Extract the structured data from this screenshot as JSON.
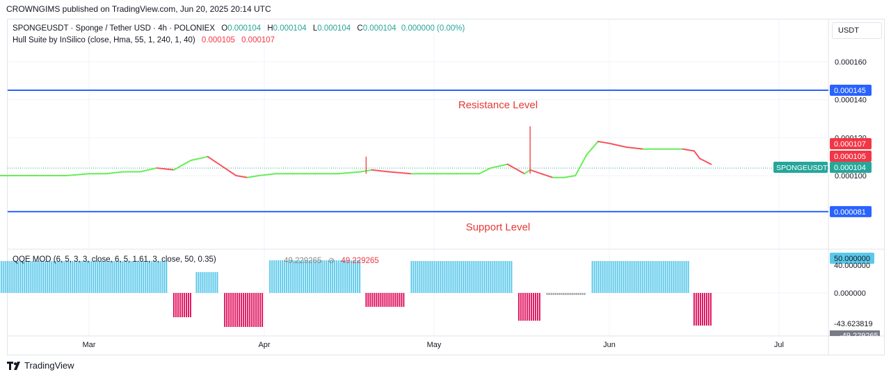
{
  "header": {
    "publisher_line": "CROWNGIMS published on TradingView.com, Jun 20, 2025 20:14 UTC"
  },
  "legend": {
    "symbol": "SPONGEUSDT · Sponge / Tether USD · 4h · POLONIEX",
    "o_label": "O",
    "o_value": "0.000104",
    "h_label": "H",
    "h_value": "0.000104",
    "l_label": "L",
    "l_value": "0.000104",
    "c_label": "C",
    "c_value": "0.000104",
    "change": "0.000000 (0.00%)",
    "indicator": "Hull Suite by InSilico (close, Hma, 55, 1, 240, 1, 40)",
    "ind_val1": "0.000105",
    "ind_val2": "0.000107"
  },
  "qqe_legend": {
    "label": "QQE MOD (6, 5, 3, 3, close, 6, 5, 1.61, 3, close, 50, 0.35)",
    "val1": "49.229265",
    "val2": "49.229265"
  },
  "currency_button": "USDT",
  "footer": {
    "brand": "TradingView"
  },
  "colors": {
    "teal": "#26a69a",
    "red": "#f23645",
    "blue": "#2962ff",
    "green": "#4cfa4c",
    "lime_hull": "#66ee55",
    "hull_red": "#f7525f",
    "cyan_bar": "#5ac8ea",
    "magenta_bar": "#e0145f",
    "gray_bar": "#9e9e9e"
  },
  "chart_data": [
    {
      "type": "line",
      "title": "SPONGEUSDT · Sponge / Tether USD · 4h · POLONIEX",
      "ylim": [
        7.7e-05,
        0.000176
      ],
      "y_ticks": [
        "0.000160",
        "0.000140",
        "0.000120",
        "0.000100"
      ],
      "x_ticks": [
        "Mar",
        "Apr",
        "May",
        "Jun",
        "Jul"
      ],
      "x_tick_dates": [
        "2025-03-01",
        "2025-04-01",
        "2025-05-01",
        "2025-06-01",
        "2025-07-01"
      ],
      "horizontal_levels": [
        {
          "label": "0.000145",
          "value": 0.000145,
          "annotation": "Resistance Level"
        },
        {
          "label": "0.000081",
          "value": 8.1e-05,
          "annotation": "Support Level"
        }
      ],
      "price_badges": [
        {
          "label": "0.000107",
          "value": 0.000107
        },
        {
          "label": "0.000105",
          "value": 0.000105
        },
        {
          "label": "0.000104",
          "value": 0.000104,
          "name": "SPONGEUSDT"
        }
      ],
      "series": [
        {
          "name": "Hull Suite",
          "x": [
            "2025-02-01",
            "2025-02-10",
            "2025-02-15",
            "2025-02-20",
            "2025-02-25",
            "2025-03-01",
            "2025-03-04",
            "2025-03-07",
            "2025-03-10",
            "2025-03-13",
            "2025-03-16",
            "2025-03-19",
            "2025-03-22",
            "2025-03-25",
            "2025-03-27",
            "2025-03-29",
            "2025-03-31",
            "2025-04-03",
            "2025-04-06",
            "2025-04-10",
            "2025-04-14",
            "2025-04-18",
            "2025-04-20",
            "2025-04-23",
            "2025-04-27",
            "2025-05-01",
            "2025-05-05",
            "2025-05-09",
            "2025-05-11",
            "2025-05-14",
            "2025-05-17",
            "2025-05-18",
            "2025-05-20",
            "2025-05-22",
            "2025-05-24",
            "2025-05-26",
            "2025-05-28",
            "2025-05-30",
            "2025-06-01",
            "2025-06-04",
            "2025-06-07",
            "2025-06-10",
            "2025-06-14",
            "2025-06-16",
            "2025-06-17",
            "2025-06-19"
          ],
          "y": [
            0.0001,
            0.0001,
            0.0001,
            0.0001,
            0.0001,
            0.000101,
            0.000101,
            0.000102,
            0.000102,
            0.000104,
            0.000103,
            0.000108,
            0.00011,
            0.000104,
            0.0001,
            9.9e-05,
            0.0001,
            0.000101,
            0.000101,
            0.000101,
            0.000101,
            0.000102,
            0.000103,
            0.000102,
            0.000101,
            0.000101,
            0.000101,
            0.000101,
            0.000104,
            0.000106,
            0.000101,
            0.000103,
            0.000101,
            9.9e-05,
            9.9e-05,
            0.0001,
            0.000111,
            0.000118,
            0.000117,
            0.000115,
            0.000114,
            0.000114,
            0.000114,
            0.000113,
            0.000109,
            0.000106
          ]
        }
      ]
    },
    {
      "type": "bar",
      "title": "QQE MOD (6, 5, 3, 3, close, 6, 5, 1.61, 3, close, 50, 0.35)",
      "ylim": [
        -55,
        55
      ],
      "y_ticks": [
        "50.000000",
        "40.000000",
        "0.000000",
        "-43.623819"
      ],
      "bottom_badge": "-49.229265",
      "segments": [
        {
          "start": "2025-02-01",
          "end": "2025-03-15",
          "value": 46,
          "color": "cyan"
        },
        {
          "start": "2025-03-16",
          "end": "2025-03-19",
          "value": -35,
          "color": "magenta"
        },
        {
          "start": "2025-03-20",
          "end": "2025-03-24",
          "value": 30,
          "color": "cyan"
        },
        {
          "start": "2025-03-25",
          "end": "2025-04-01",
          "value": -49,
          "color": "magenta"
        },
        {
          "start": "2025-04-02",
          "end": "2025-04-18",
          "value": 47,
          "color": "cyan"
        },
        {
          "start": "2025-04-19",
          "end": "2025-04-26",
          "value": -20,
          "color": "magenta"
        },
        {
          "start": "2025-04-27",
          "end": "2025-05-15",
          "value": 46,
          "color": "cyan"
        },
        {
          "start": "2025-05-16",
          "end": "2025-05-20",
          "value": -40,
          "color": "magenta"
        },
        {
          "start": "2025-05-21",
          "end": "2025-05-28",
          "value": -3,
          "color": "gray"
        },
        {
          "start": "2025-05-29",
          "end": "2025-06-15",
          "value": 46,
          "color": "cyan"
        },
        {
          "start": "2025-06-16",
          "end": "2025-06-19",
          "value": -47,
          "color": "magenta"
        }
      ]
    }
  ]
}
